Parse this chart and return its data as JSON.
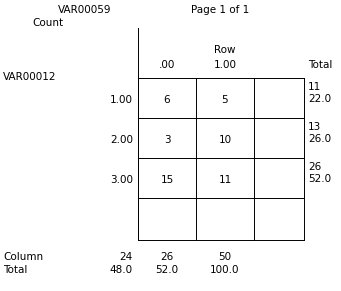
{
  "title_left": "VAR00059",
  "title_right": "Page 1 of 1",
  "count_label": "Count",
  "row_var": "VAR00012",
  "col_headers": [
    ".00",
    "1.00"
  ],
  "col_header_label": "Row",
  "row_labels": [
    "1.00",
    "2.00",
    "3.00"
  ],
  "cell_values": [
    [
      6,
      5
    ],
    [
      3,
      10
    ],
    [
      15,
      11
    ]
  ],
  "row_totals": [
    [
      11,
      "22.0"
    ],
    [
      13,
      "26.0"
    ],
    [
      26,
      "52.0"
    ]
  ],
  "col_totals_row1": [
    "Column",
    "24",
    "26",
    "50"
  ],
  "col_totals_row2": [
    "Total",
    "48.0",
    "52.0",
    "100.0"
  ],
  "total_label": "Total",
  "bg_color": "#ffffff",
  "text_color": "#000000",
  "line_color": "#000000",
  "font_size": 7.5
}
